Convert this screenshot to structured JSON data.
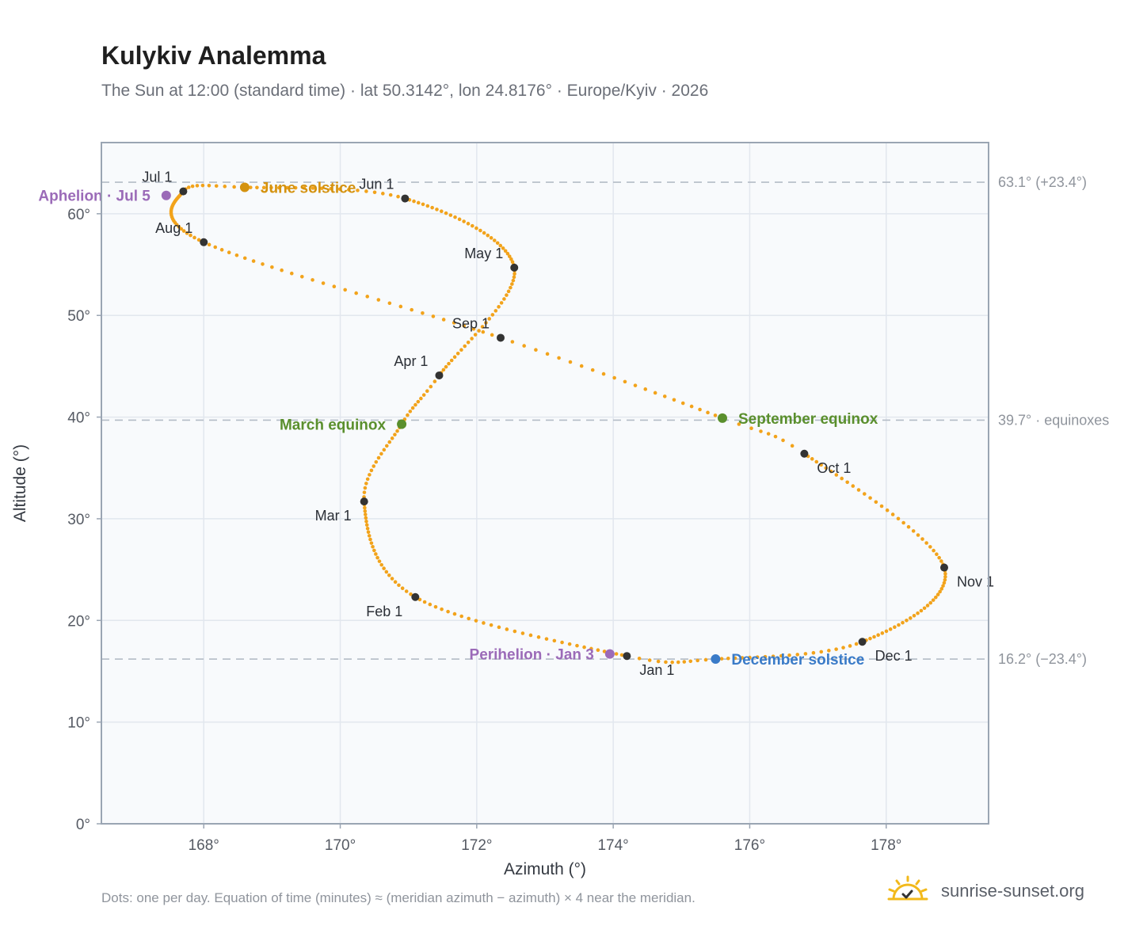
{
  "header": {
    "title": "Kulykiv Analemma",
    "subtitle": "The Sun at 12:00 (standard time) · lat 50.3142°, lon 24.8176° · Europe/Kyiv · 2026"
  },
  "footer": {
    "note": "Dots: one per day. Equation of time (minutes) ≈ (meridian azimuth − azimuth) × 4 near the meridian.",
    "brand": "sunrise-sunset.org"
  },
  "colors": {
    "curve": "#f2a31b",
    "month_marker": "#333333",
    "june_solstice": "#d4920f",
    "equinox": "#5a8f2d",
    "december_solstice": "#3a7bc8",
    "apsis": "#9b6bb8",
    "reference_line": "#b4bcc6",
    "plot_bg": "#f8fafc",
    "grid": "#e2e7ee",
    "frame": "#9aa5b3"
  },
  "icons": {
    "brand": "sun-check-icon"
  },
  "chart_data": {
    "type": "scatter",
    "title": "Kulykiv Analemma",
    "subtitle": "The Sun at 12:00 (standard time) · lat 50.3142°, lon 24.8176° · Europe/Kyiv · 2026",
    "xlabel": "Azimuth (°)",
    "ylabel": "Altitude (°)",
    "xlim": [
      166.5,
      179.5
    ],
    "ylim": [
      0,
      67
    ],
    "xticks": [
      168,
      170,
      172,
      174,
      176,
      178
    ],
    "yticks": [
      0,
      10,
      20,
      30,
      40,
      50,
      60
    ],
    "xtick_labels": [
      "168°",
      "170°",
      "172°",
      "174°",
      "176°",
      "178°"
    ],
    "ytick_labels": [
      "0°",
      "10°",
      "20°",
      "30°",
      "40°",
      "50°",
      "60°"
    ],
    "grid": true,
    "series": [
      {
        "marker": "dot",
        "note_days": "one dot per day",
        "points": [
          {
            "day": 1,
            "x": 174.2,
            "y": 16.5
          },
          {
            "day": 32,
            "x": 171.1,
            "y": 22.3
          },
          {
            "day": 60,
            "x": 170.35,
            "y": 31.7
          },
          {
            "day": 79,
            "x": 170.9,
            "y": 39.3
          },
          {
            "day": 91,
            "x": 171.45,
            "y": 44.1
          },
          {
            "day": 121,
            "x": 172.55,
            "y": 54.7
          },
          {
            "day": 152,
            "x": 170.95,
            "y": 61.5
          },
          {
            "day": 172,
            "x": 168.6,
            "y": 62.6
          },
          {
            "day": 182,
            "x": 167.7,
            "y": 62.2
          },
          {
            "day": 213,
            "x": 168.0,
            "y": 57.2
          },
          {
            "day": 244,
            "x": 172.35,
            "y": 47.8
          },
          {
            "day": 266,
            "x": 175.6,
            "y": 39.9
          },
          {
            "day": 274,
            "x": 176.8,
            "y": 36.4
          },
          {
            "day": 305,
            "x": 178.85,
            "y": 25.2
          },
          {
            "day": 335,
            "x": 177.65,
            "y": 17.9
          },
          {
            "day": 355,
            "x": 175.5,
            "y": 16.2
          },
          {
            "day": 366,
            "x": 174.2,
            "y": 16.5
          }
        ]
      }
    ],
    "month_markers": [
      {
        "label": "Jan 1",
        "x": 174.2,
        "y": 16.5,
        "anchor": "below-right"
      },
      {
        "label": "Feb 1",
        "x": 171.1,
        "y": 22.3,
        "anchor": "below-left"
      },
      {
        "label": "Mar 1",
        "x": 170.35,
        "y": 31.7,
        "anchor": "below-left"
      },
      {
        "label": "Apr 1",
        "x": 171.45,
        "y": 44.1,
        "anchor": "above-left"
      },
      {
        "label": "May 1",
        "x": 172.55,
        "y": 54.7,
        "anchor": "above-left"
      },
      {
        "label": "Jun 1",
        "x": 170.95,
        "y": 61.5,
        "anchor": "above-left"
      },
      {
        "label": "Jul 1",
        "x": 167.7,
        "y": 62.2,
        "anchor": "above-left"
      },
      {
        "label": "Aug 1",
        "x": 168.0,
        "y": 57.2,
        "anchor": "above-left"
      },
      {
        "label": "Sep 1",
        "x": 172.35,
        "y": 47.8,
        "anchor": "above-left"
      },
      {
        "label": "Oct 1",
        "x": 176.8,
        "y": 36.4,
        "anchor": "below-right"
      },
      {
        "label": "Nov 1",
        "x": 178.85,
        "y": 25.2,
        "anchor": "below-right"
      },
      {
        "label": "Dec 1",
        "x": 177.65,
        "y": 17.9,
        "anchor": "below-right"
      }
    ],
    "events": [
      {
        "label": "June solstice",
        "x": 168.6,
        "y": 62.6,
        "color_key": "june_solstice",
        "anchor": "right"
      },
      {
        "label": "March equinox",
        "x": 170.9,
        "y": 39.3,
        "color_key": "equinox",
        "anchor": "left"
      },
      {
        "label": "September equinox",
        "x": 175.6,
        "y": 39.9,
        "color_key": "equinox",
        "anchor": "right"
      },
      {
        "label": "December solstice",
        "x": 175.5,
        "y": 16.2,
        "color_key": "december_solstice",
        "anchor": "right"
      },
      {
        "label": "Aphelion · Jul 5",
        "x": 167.45,
        "y": 61.8,
        "color_key": "apsis",
        "anchor": "left"
      },
      {
        "label": "Perihelion · Jan 3",
        "x": 173.95,
        "y": 16.7,
        "color_key": "apsis",
        "anchor": "left"
      }
    ],
    "reference_lines": [
      {
        "y": 63.1,
        "label": "63.1° (+23.4°)"
      },
      {
        "y": 39.7,
        "label": "39.7° · equinoxes"
      },
      {
        "y": 16.2,
        "label": "16.2° (−23.4°)"
      }
    ]
  }
}
